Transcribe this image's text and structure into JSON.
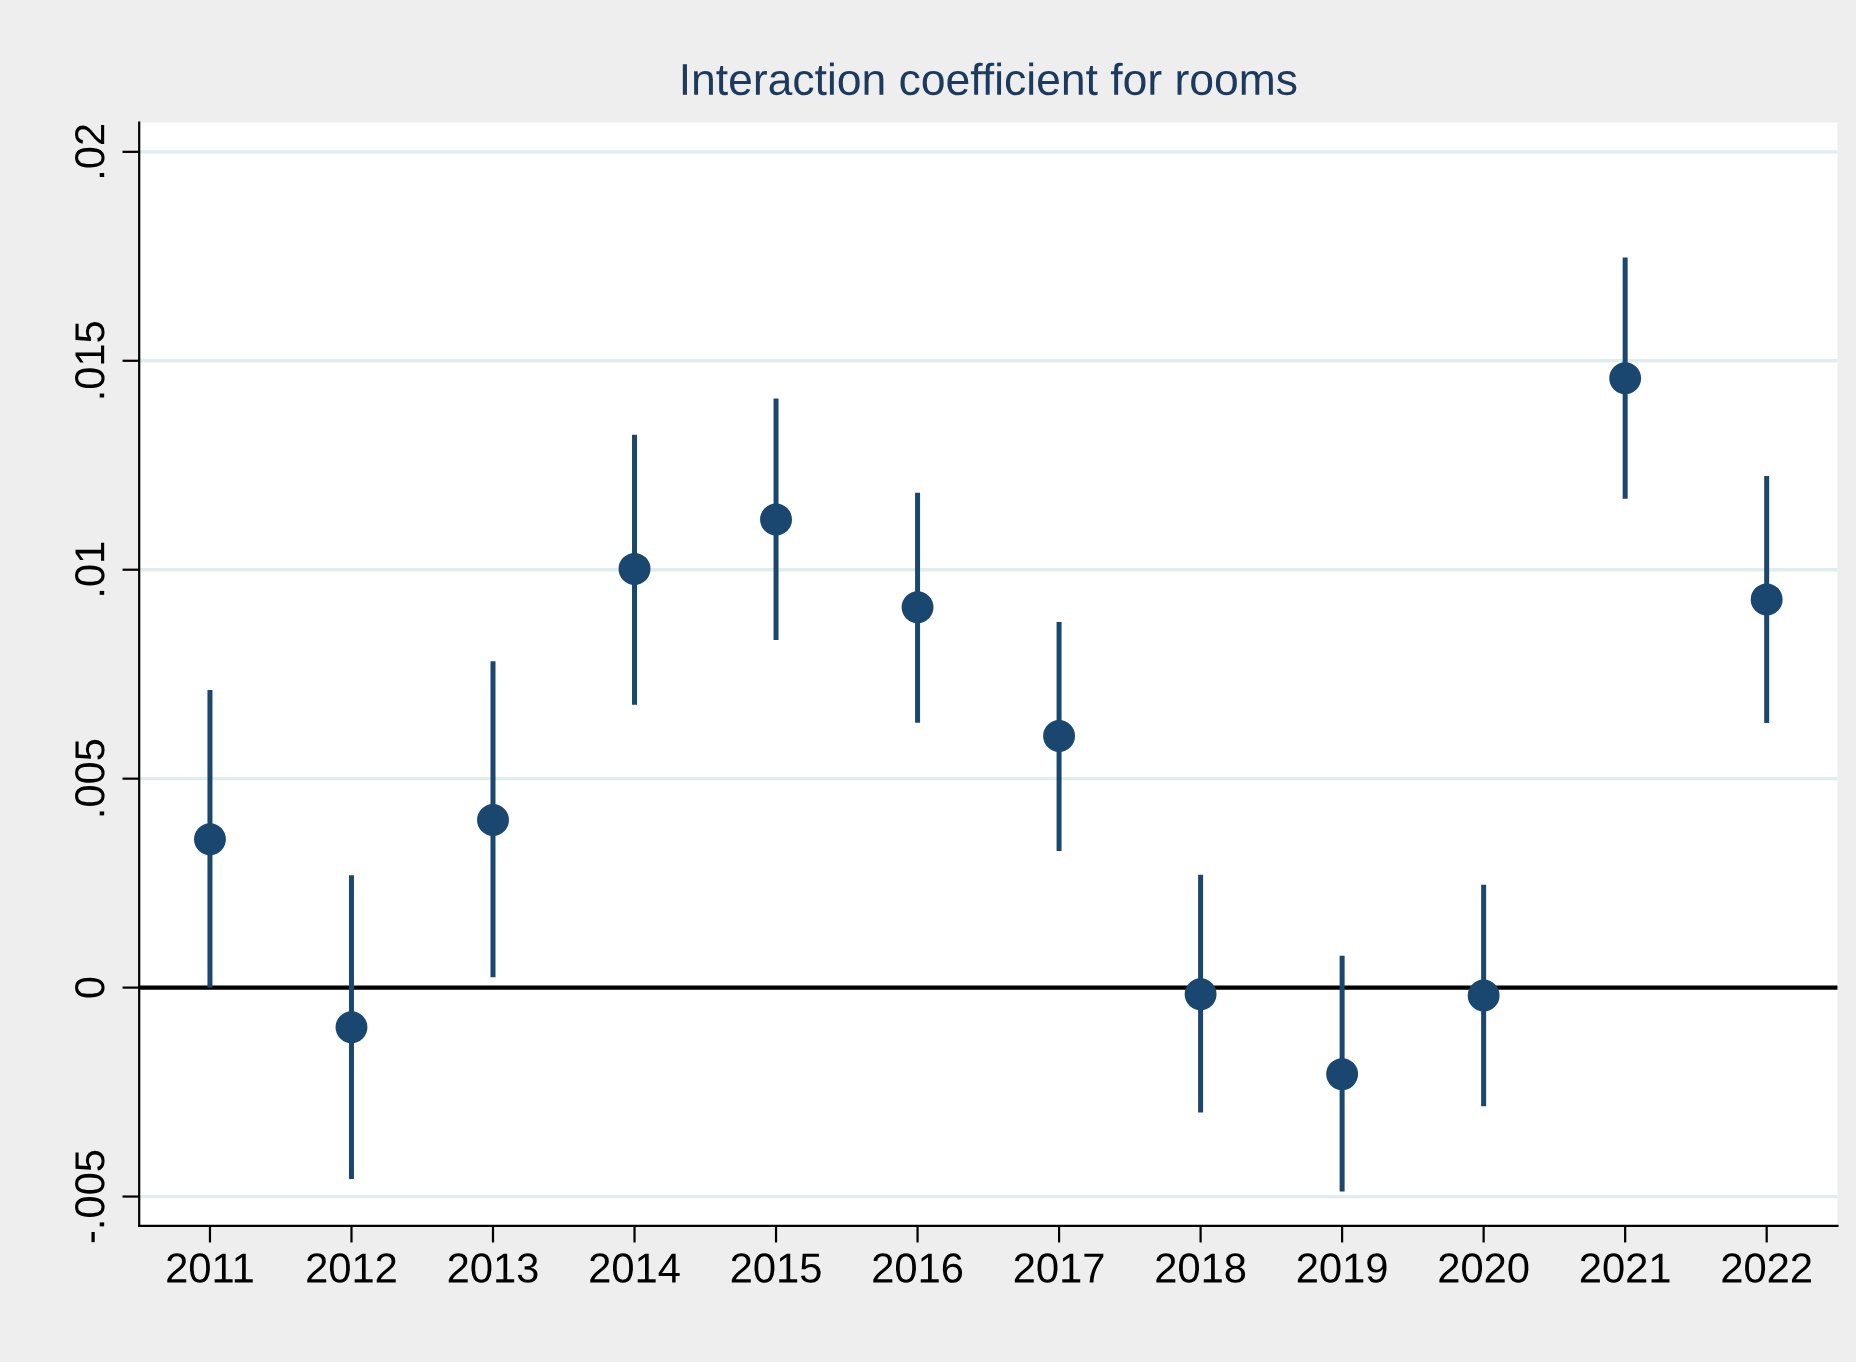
{
  "chart_data": {
    "type": "scatter",
    "title": "Interaction coefficient for rooms",
    "categories": [
      "2011",
      "2012",
      "2013",
      "2014",
      "2015",
      "2016",
      "2017",
      "2018",
      "2019",
      "2020",
      "2021",
      "2022"
    ],
    "series": [
      {
        "color": "#1a476f",
        "values": [
          0.00355,
          -0.00095,
          0.00401,
          0.01002,
          0.0112,
          0.0091,
          0.00602,
          -0.00016,
          -0.00207,
          -0.00019,
          0.01458,
          0.00929
        ],
        "errors": [
          [
            0,
            0.00712
          ],
          [
            -0.00458,
            0.00269
          ],
          [
            0.00025,
            0.00781
          ],
          [
            0.00677,
            0.01323
          ],
          [
            0.00832,
            0.0141
          ],
          [
            0.00634,
            0.01184
          ],
          [
            0.00327,
            0.00875
          ],
          [
            -0.00299,
            0.0027
          ],
          [
            -0.00488,
            0.00076
          ],
          [
            -0.00284,
            0.00246
          ],
          [
            0.0117,
            0.01747
          ],
          [
            0.00633,
            0.01224
          ]
        ]
      }
    ],
    "ylim": [
      -0.0057,
      0.0207
    ],
    "yticks": [
      {
        "value": -0.005,
        "label": "-.005"
      },
      {
        "value": 0,
        "label": "0"
      },
      {
        "value": 0.005,
        "label": ".005"
      },
      {
        "value": 0.01,
        "label": ".01"
      },
      {
        "value": 0.015,
        "label": ".015"
      },
      {
        "value": 0.02,
        "label": ".02"
      }
    ],
    "ref_lines": [
      {
        "axis": "y",
        "value": 0,
        "color": "#000000"
      }
    ],
    "grid": "y",
    "marker": "circle",
    "legend": false
  }
}
